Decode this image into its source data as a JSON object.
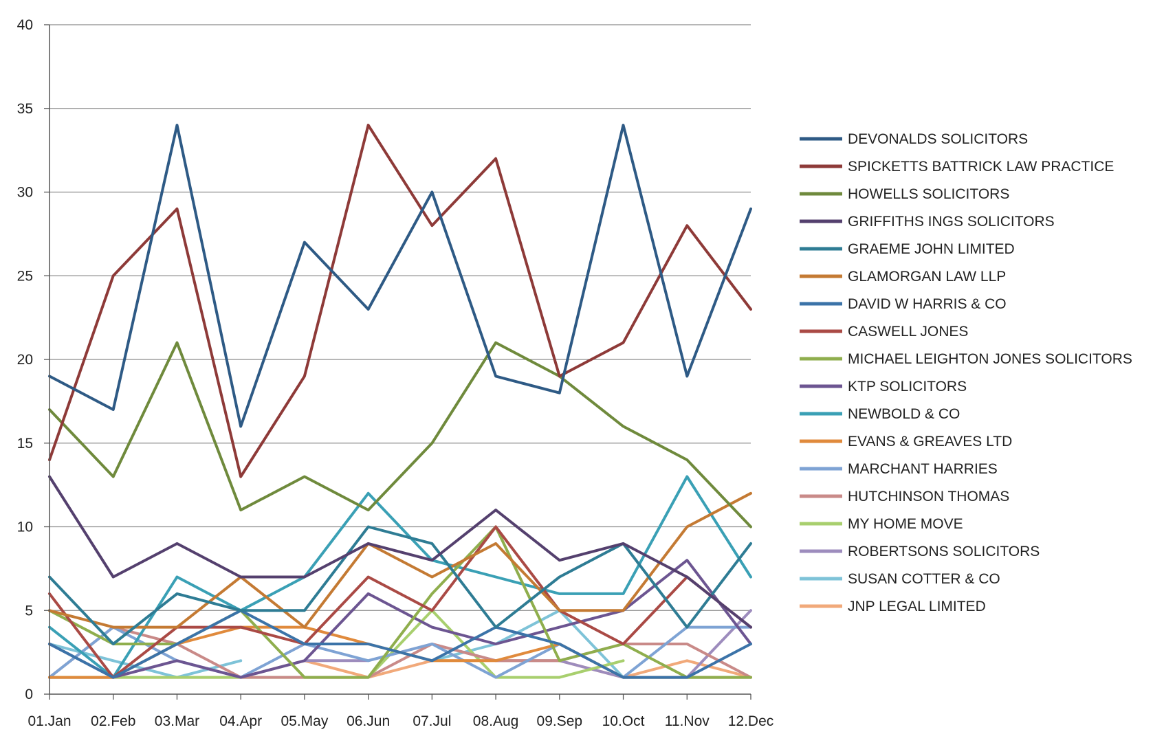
{
  "chart_data": {
    "type": "line",
    "title": "",
    "xlabel": "",
    "ylabel": "",
    "categories": [
      "01.Jan",
      "02.Feb",
      "03.Mar",
      "04.Apr",
      "05.May",
      "06.Jun",
      "07.Jul",
      "08.Aug",
      "09.Sep",
      "10.Oct",
      "11.Nov",
      "12.Dec"
    ],
    "ylim": [
      0,
      40
    ],
    "yticks": [
      0,
      5,
      10,
      15,
      20,
      25,
      30,
      35,
      40
    ],
    "grid": true,
    "legend_position": "right",
    "series": [
      {
        "name": "DEVONALDS SOLICITORS",
        "color": "#2e5a85",
        "values": [
          19,
          17,
          34,
          16,
          27,
          23,
          30,
          19,
          18,
          34,
          19,
          29
        ]
      },
      {
        "name": "SPICKETTS BATTRICK LAW PRACTICE",
        "color": "#8e3a38",
        "values": [
          14,
          25,
          29,
          13,
          19,
          34,
          28,
          32,
          19,
          21,
          28,
          23
        ]
      },
      {
        "name": "HOWELLS SOLICITORS",
        "color": "#6f8a3c",
        "values": [
          17,
          13,
          21,
          11,
          13,
          11,
          15,
          21,
          19,
          16,
          14,
          10
        ]
      },
      {
        "name": "GRIFFITHS INGS SOLICITORS",
        "color": "#54406e",
        "values": [
          13,
          7,
          9,
          7,
          7,
          9,
          8,
          11,
          8,
          9,
          7,
          4
        ]
      },
      {
        "name": "GRAEME JOHN LIMITED",
        "color": "#2e7c94",
        "values": [
          7,
          3,
          6,
          5,
          5,
          10,
          9,
          4,
          7,
          9,
          4,
          9
        ]
      },
      {
        "name": "GLAMORGAN LAW LLP",
        "color": "#c47a33",
        "values": [
          5,
          4,
          4,
          7,
          4,
          9,
          7,
          9,
          5,
          5,
          10,
          12
        ]
      },
      {
        "name": "DAVID W HARRIS & CO",
        "color": "#3b73a8",
        "values": [
          3,
          1,
          3,
          5,
          3,
          3,
          2,
          4,
          3,
          1,
          1,
          3
        ]
      },
      {
        "name": "CASWELL JONES",
        "color": "#aa4a45",
        "values": [
          6,
          1,
          4,
          4,
          3,
          7,
          5,
          10,
          5,
          3,
          7,
          4
        ]
      },
      {
        "name": "MICHAEL LEIGHTON JONES SOLICITORS",
        "color": "#8fae4d",
        "values": [
          5,
          3,
          3,
          5,
          1,
          1,
          6,
          10,
          2,
          3,
          1,
          1
        ]
      },
      {
        "name": "KTP SOLICITORS",
        "color": "#6c5591",
        "values": [
          3,
          1,
          2,
          1,
          2,
          6,
          4,
          3,
          4,
          5,
          8,
          3
        ]
      },
      {
        "name": "NEWBOLD & CO",
        "color": "#3aa0b5",
        "values": [
          4,
          1,
          7,
          5,
          7,
          12,
          8,
          7,
          6,
          6,
          13,
          7
        ]
      },
      {
        "name": "EVANS & GREAVES LTD",
        "color": "#e08a3c",
        "values": [
          1,
          1,
          3,
          4,
          4,
          3,
          2,
          2,
          3,
          1,
          1,
          1
        ]
      },
      {
        "name": "MARCHANT HARRIES",
        "color": "#7ea3d4",
        "values": [
          1,
          4,
          2,
          1,
          3,
          2,
          3,
          1,
          3,
          1,
          4,
          4
        ]
      },
      {
        "name": "HUTCHINSON THOMAS",
        "color": "#c98a88",
        "values": [
          1,
          4,
          3,
          1,
          1,
          1,
          3,
          2,
          2,
          3,
          3,
          1
        ]
      },
      {
        "name": "MY HOME MOVE",
        "color": "#a8cf6e",
        "values": [
          1,
          1,
          1,
          1,
          1,
          1,
          5,
          1,
          1,
          2,
          null,
          null
        ]
      },
      {
        "name": "ROBERTSONS SOLICITORS",
        "color": "#9d8cbd",
        "values": [
          1,
          1,
          2,
          1,
          2,
          2,
          3,
          2,
          2,
          1,
          1,
          5
        ]
      },
      {
        "name": "SUSAN COTTER & CO",
        "color": "#7ec3d8",
        "values": [
          3,
          2,
          1,
          2,
          null,
          null,
          2,
          3,
          5,
          1,
          1,
          1
        ]
      },
      {
        "name": "JNP LEGAL LIMITED",
        "color": "#f1a97a",
        "values": [
          1,
          1,
          1,
          1,
          2,
          1,
          2,
          2,
          2,
          1,
          2,
          1
        ]
      }
    ]
  }
}
